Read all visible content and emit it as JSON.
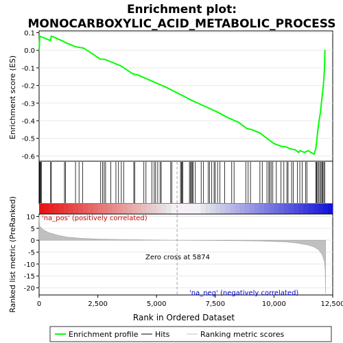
{
  "title_line1": "Enrichment plot:",
  "title_line2": "MONOCARBOXYLIC_ACID_METABOLIC_PROCESS",
  "chart_data": [
    {
      "type": "line",
      "name": "enrichment",
      "ylabel": "Enrichment score (ES)",
      "ylim": [
        -0.63,
        0.11
      ],
      "yticks": [
        0.1,
        0.0,
        -0.1,
        -0.2,
        -0.3,
        -0.4,
        -0.5,
        -0.6
      ],
      "ytick_labels": [
        "0.1",
        "0.0",
        "-0.1",
        "-0.2",
        "-0.3",
        "-0.4",
        "-0.5",
        "-0.6"
      ],
      "xlim": [
        0,
        12500
      ],
      "series_color": "#00ff00",
      "points": [
        [
          0,
          0.0
        ],
        [
          30,
          0.08
        ],
        [
          480,
          0.055
        ],
        [
          520,
          0.08
        ],
        [
          1050,
          0.05
        ],
        [
          1100,
          0.045
        ],
        [
          1550,
          0.02
        ],
        [
          1900,
          0.012
        ],
        [
          2150,
          -0.01
        ],
        [
          2600,
          -0.05
        ],
        [
          2800,
          -0.052
        ],
        [
          3500,
          -0.09
        ],
        [
          4000,
          -0.135
        ],
        [
          4200,
          -0.14
        ],
        [
          4800,
          -0.175
        ],
        [
          5400,
          -0.21
        ],
        [
          6000,
          -0.25
        ],
        [
          6500,
          -0.285
        ],
        [
          7000,
          -0.315
        ],
        [
          7500,
          -0.345
        ],
        [
          8000,
          -0.38
        ],
        [
          8500,
          -0.41
        ],
        [
          8850,
          -0.445
        ],
        [
          9050,
          -0.45
        ],
        [
          9400,
          -0.47
        ],
        [
          9800,
          -0.51
        ],
        [
          10000,
          -0.53
        ],
        [
          10300,
          -0.545
        ],
        [
          10500,
          -0.548
        ],
        [
          10700,
          -0.56
        ],
        [
          10900,
          -0.565
        ],
        [
          11050,
          -0.58
        ],
        [
          11100,
          -0.57
        ],
        [
          11300,
          -0.58
        ],
        [
          11450,
          -0.57
        ],
        [
          11700,
          -0.59
        ],
        [
          11780,
          -0.56
        ],
        [
          11830,
          -0.5
        ],
        [
          11870,
          -0.45
        ],
        [
          11920,
          -0.4
        ],
        [
          11980,
          -0.35
        ],
        [
          12020,
          -0.3
        ],
        [
          12060,
          -0.25
        ],
        [
          12100,
          -0.2
        ],
        [
          12130,
          -0.15
        ],
        [
          12150,
          -0.1
        ],
        [
          12160,
          -0.05
        ],
        [
          12170,
          0.0
        ],
        [
          12180,
          0.002
        ]
      ]
    },
    {
      "type": "area",
      "name": "ranked_metric",
      "ylabel": "Ranked list metric (PreRanked)",
      "ylim": [
        -23,
        11
      ],
      "yticks": [
        10,
        5,
        0,
        -5,
        -10,
        -15,
        -20
      ],
      "ytick_labels": [
        "10",
        "5",
        "0",
        "-5",
        "-10",
        "-15",
        "-20"
      ],
      "xlabel": "Rank in Ordered Dataset",
      "xticks": [
        0,
        2500,
        5000,
        7500,
        10000,
        12500
      ],
      "xtick_labels": [
        "0",
        "2,500",
        "5,000",
        "7,500",
        "10,000",
        "12,500"
      ],
      "xlim": [
        0,
        12500
      ],
      "zero_cross": 5874,
      "fill_color": "#c0c0c0",
      "points": [
        [
          0,
          10.5
        ],
        [
          20,
          6.0
        ],
        [
          150,
          4.6
        ],
        [
          400,
          3.2
        ],
        [
          800,
          2.1
        ],
        [
          1200,
          1.3
        ],
        [
          1800,
          0.8
        ],
        [
          2500,
          0.5
        ],
        [
          3500,
          0.3
        ],
        [
          4500,
          0.15
        ],
        [
          5500,
          0.05
        ],
        [
          5874,
          0.0
        ],
        [
          6500,
          -0.05
        ],
        [
          7500,
          -0.1
        ],
        [
          8500,
          -0.2
        ],
        [
          9500,
          -0.35
        ],
        [
          10500,
          -0.7
        ],
        [
          11000,
          -1.2
        ],
        [
          11400,
          -1.9
        ],
        [
          11700,
          -2.8
        ],
        [
          11900,
          -4.0
        ],
        [
          12050,
          -6.0
        ],
        [
          12150,
          -9.0
        ],
        [
          12180,
          -12.5
        ],
        [
          12195,
          -22.5
        ]
      ],
      "annotations": {
        "pos_label": "'na_pos' (positively correlated)",
        "neg_label": "'na_neg' (negatively correlated)",
        "zero_label": "Zero cross at 5874"
      }
    }
  ],
  "hits": [
    20,
    40,
    70,
    95,
    490,
    520,
    1080,
    1120,
    1550,
    1700,
    1850,
    2620,
    2700,
    2770,
    2830,
    3050,
    3270,
    3380,
    3500,
    3600,
    4030,
    4070,
    4460,
    4550,
    4800,
    4900,
    4960,
    5050,
    5150,
    5200,
    5600,
    5650,
    6020,
    6060,
    6080,
    6120,
    6400,
    6450,
    6480,
    6520,
    6560,
    6650,
    6900,
    7000,
    7200,
    7260,
    7350,
    7450,
    7500,
    7600,
    7700,
    7900,
    8200,
    8300,
    8800,
    8900,
    9000,
    9400,
    9500,
    9700,
    9780,
    9820,
    9880,
    9950,
    10100,
    10300,
    10420,
    10550,
    10600,
    10750,
    10820,
    11000,
    11100,
    11200,
    11350,
    11400,
    11780,
    11810,
    11850,
    11900,
    11950,
    12000,
    12040,
    12080,
    12120,
    12160
  ],
  "legend": [
    {
      "label": "Enrichment profile",
      "color": "#00ff00",
      "kind": "line-thick"
    },
    {
      "label": "Hits",
      "color": "#000000",
      "kind": "line"
    },
    {
      "label": "Ranking metric scores",
      "color": "#c0c0c0",
      "kind": "line"
    }
  ]
}
